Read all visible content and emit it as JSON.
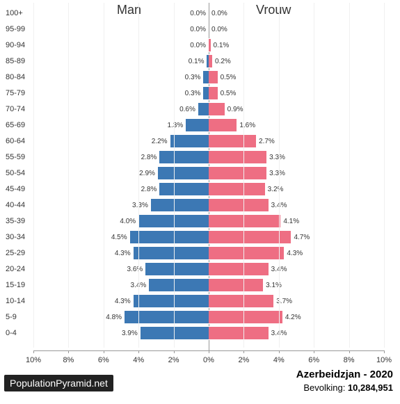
{
  "chart": {
    "type": "population-pyramid",
    "male_label": "Man",
    "female_label": "Vrouw",
    "male_color": "#3c78b4",
    "female_color": "#ee6e83",
    "background_color": "#ffffff",
    "grid_color": "#f0f0f0",
    "center_line_color": "#999999",
    "text_color": "#333333",
    "header_fontsize": 18,
    "label_fontsize": 11,
    "pct_fontsize": 10,
    "max_pct": 10,
    "xtick_step": 2,
    "xticks": [
      "10%",
      "8%",
      "6%",
      "4%",
      "2%",
      "0%",
      "2%",
      "4%",
      "6%",
      "8%",
      "10%"
    ],
    "age_groups": [
      {
        "label": "100+",
        "male": 0.0,
        "female": 0.0,
        "male_txt": "0.0%",
        "female_txt": "0.0%"
      },
      {
        "label": "95-99",
        "male": 0.0,
        "female": 0.0,
        "male_txt": "0.0%",
        "female_txt": "0.0%"
      },
      {
        "label": "90-94",
        "male": 0.0,
        "female": 0.1,
        "male_txt": "0.0%",
        "female_txt": "0.1%"
      },
      {
        "label": "85-89",
        "male": 0.1,
        "female": 0.2,
        "male_txt": "0.1%",
        "female_txt": "0.2%"
      },
      {
        "label": "80-84",
        "male": 0.3,
        "female": 0.5,
        "male_txt": "0.3%",
        "female_txt": "0.5%"
      },
      {
        "label": "75-79",
        "male": 0.3,
        "female": 0.5,
        "male_txt": "0.3%",
        "female_txt": "0.5%"
      },
      {
        "label": "70-74",
        "male": 0.6,
        "female": 0.9,
        "male_txt": "0.6%",
        "female_txt": "0.9%"
      },
      {
        "label": "65-69",
        "male": 1.3,
        "female": 1.6,
        "male_txt": "1.3%",
        "female_txt": "1.6%"
      },
      {
        "label": "60-64",
        "male": 2.2,
        "female": 2.7,
        "male_txt": "2.2%",
        "female_txt": "2.7%"
      },
      {
        "label": "55-59",
        "male": 2.8,
        "female": 3.3,
        "male_txt": "2.8%",
        "female_txt": "3.3%"
      },
      {
        "label": "50-54",
        "male": 2.9,
        "female": 3.3,
        "male_txt": "2.9%",
        "female_txt": "3.3%"
      },
      {
        "label": "45-49",
        "male": 2.8,
        "female": 3.2,
        "male_txt": "2.8%",
        "female_txt": "3.2%"
      },
      {
        "label": "40-44",
        "male": 3.3,
        "female": 3.4,
        "male_txt": "3.3%",
        "female_txt": "3.4%"
      },
      {
        "label": "35-39",
        "male": 4.0,
        "female": 4.1,
        "male_txt": "4.0%",
        "female_txt": "4.1%"
      },
      {
        "label": "30-34",
        "male": 4.5,
        "female": 4.7,
        "male_txt": "4.5%",
        "female_txt": "4.7%"
      },
      {
        "label": "25-29",
        "male": 4.3,
        "female": 4.3,
        "male_txt": "4.3%",
        "female_txt": "4.3%"
      },
      {
        "label": "20-24",
        "male": 3.6,
        "female": 3.4,
        "male_txt": "3.6%",
        "female_txt": "3.4%"
      },
      {
        "label": "15-19",
        "male": 3.4,
        "female": 3.1,
        "male_txt": "3.4%",
        "female_txt": "3.1%"
      },
      {
        "label": "10-14",
        "male": 4.3,
        "female": 3.7,
        "male_txt": "4.3%",
        "female_txt": "3.7%"
      },
      {
        "label": "5-9",
        "male": 4.8,
        "female": 4.2,
        "male_txt": "4.8%",
        "female_txt": "4.2%"
      },
      {
        "label": "0-4",
        "male": 3.9,
        "female": 3.4,
        "male_txt": "3.9%",
        "female_txt": "3.4%"
      }
    ]
  },
  "footer": {
    "badge": "PopulationPyramid.net",
    "title": "Azerbeidzjan - 2020",
    "population_label": "Bevolking: ",
    "population_value": "10,284,951"
  }
}
